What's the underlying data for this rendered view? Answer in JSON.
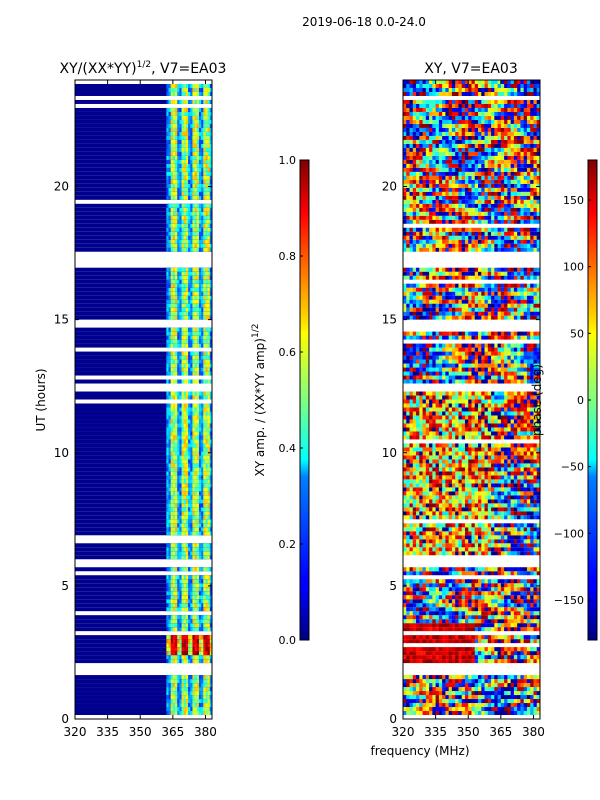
{
  "figure": {
    "suptitle": "2019-06-18 0.0-24.0",
    "shared_xlabel": "frequency (MHz)"
  },
  "chart_data": [
    {
      "type": "heatmap",
      "title_main": "XY/(XX*YY)",
      "title_exp": "1/2",
      "title_suffix": ", V7=EA03",
      "ylabel": "UT (hours)",
      "xlim": [
        320,
        383
      ],
      "ylim": [
        0,
        24
      ],
      "xticks": [
        320,
        335,
        350,
        365,
        380
      ],
      "yticks": [
        0,
        5,
        10,
        15,
        20
      ],
      "colorbar": {
        "label_main": "XY amp. / (XX*YY amp)",
        "label_exp": "1/2",
        "range": [
          0.0,
          1.0
        ],
        "ticks": [
          "0.0",
          "0.2",
          "0.4",
          "0.6",
          "0.8",
          "1.0"
        ]
      },
      "band_channels_MHz": [
        365,
        370,
        375,
        380
      ],
      "blank_rows_hours": [
        [
          1.6,
          2.0
        ],
        [
          5.6,
          6.0
        ],
        [
          12.2,
          12.6
        ],
        [
          14.7,
          14.9
        ],
        [
          16.9,
          17.5
        ],
        [
          23.2,
          23.4
        ]
      ],
      "high_amplitude_hours": [
        [
          2.4,
          3.3
        ]
      ]
    },
    {
      "type": "heatmap",
      "title": "XY, V7=EA03",
      "ylabel": "phase (deg)",
      "xlim": [
        320,
        383
      ],
      "ylim": [
        0,
        24
      ],
      "xticks": [
        320,
        335,
        350,
        365,
        380
      ],
      "yticks": [
        0,
        5,
        10,
        15,
        20
      ],
      "colorbar": {
        "range": [
          -180,
          180
        ],
        "ticks": [
          "−150",
          "−100",
          "−50",
          "0",
          "50",
          "100",
          "150"
        ]
      },
      "blank_rows_hours": [
        [
          1.6,
          2.0
        ],
        [
          5.6,
          6.0
        ],
        [
          12.2,
          12.6
        ],
        [
          14.7,
          14.9
        ],
        [
          16.9,
          17.5
        ],
        [
          23.2,
          23.4
        ]
      ]
    }
  ],
  "colors": {
    "jet_low": "#00007f",
    "jet_high": "#7f0000",
    "axes": "#000000",
    "background": "#ffffff"
  }
}
